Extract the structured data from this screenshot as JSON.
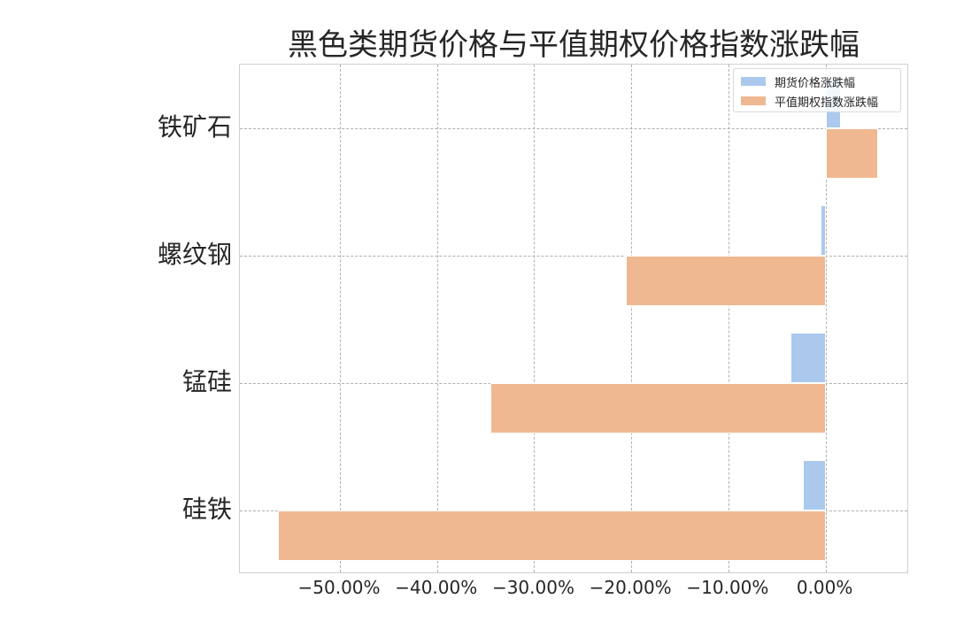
{
  "chart_data": {
    "type": "bar",
    "orientation": "horizontal",
    "title": "黑色类期货价格与平值期权价格指数涨跌幅",
    "categories": [
      "铁矿石",
      "螺纹钢",
      "锰硅",
      "硅铁"
    ],
    "series": [
      {
        "name": "期货价格涨跌幅",
        "color": "#aac9ed",
        "values": [
          1.6,
          -0.5,
          -3.6,
          -2.3
        ]
      },
      {
        "name": "平值期权指数涨跌幅",
        "color": "#f0b891",
        "values": [
          5.4,
          -20.6,
          -34.5,
          -56.4
        ]
      }
    ],
    "xlabel": "",
    "ylabel": "",
    "xlim": [
      -60.3,
      8.6
    ],
    "xticks": [
      -50,
      -40,
      -30,
      -20,
      -10,
      0
    ],
    "xtick_labels": [
      "−50.00%",
      "−40.00%",
      "−30.00%",
      "−20.00%",
      "−10.00%",
      "0.00%"
    ],
    "grid": true,
    "legend_position": "upper right",
    "unit": "%"
  }
}
